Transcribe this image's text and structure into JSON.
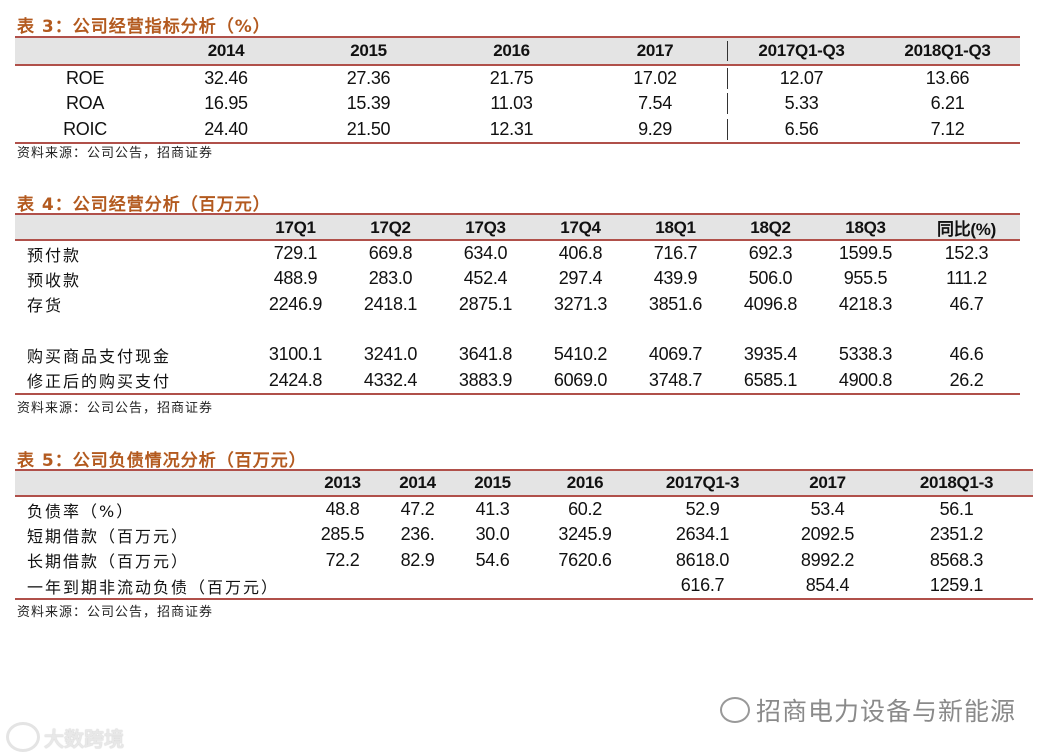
{
  "table3": {
    "title": "表 3：公司经营指标分析（%）",
    "headers": [
      "",
      "2014",
      "2015",
      "2016",
      "2017",
      "2017Q1-Q3",
      "2018Q1-Q3"
    ],
    "rows": [
      [
        "ROE",
        "32.46",
        "27.36",
        "21.75",
        "17.02",
        "12.07",
        "13.66"
      ],
      [
        "ROA",
        "16.95",
        "15.39",
        "11.03",
        "7.54",
        "5.33",
        "6.21"
      ],
      [
        "ROIC",
        "24.40",
        "21.50",
        "12.31",
        "9.29",
        "6.56",
        "7.12"
      ]
    ],
    "source": "资料来源：公司公告，招商证券"
  },
  "table4": {
    "title": "表 4：公司经营分析（百万元）",
    "headers": [
      "",
      "17Q1",
      "17Q2",
      "17Q3",
      "17Q4",
      "18Q1",
      "18Q2",
      "18Q3",
      "同比(%)"
    ],
    "rows": [
      [
        "预付款",
        "729.1",
        "669.8",
        "634.0",
        "406.8",
        "716.7",
        "692.3",
        "1599.5",
        "152.3"
      ],
      [
        "预收款",
        "488.9",
        "283.0",
        "452.4",
        "297.4",
        "439.9",
        "506.0",
        "955.5",
        "111.2"
      ],
      [
        "存货",
        "2246.9",
        "2418.1",
        "2875.1",
        "3271.3",
        "3851.6",
        "4096.8",
        "4218.3",
        "46.7"
      ],
      [
        "",
        "",
        "",
        "",
        "",
        "",
        "",
        "",
        ""
      ],
      [
        "购买商品支付现金",
        "3100.1",
        "3241.0",
        "3641.8",
        "5410.2",
        "4069.7",
        "3935.4",
        "5338.3",
        "46.6"
      ],
      [
        "修正后的购买支付",
        "2424.8",
        "4332.4",
        "3883.9",
        "6069.0",
        "3748.7",
        "6585.1",
        "4900.8",
        "26.2"
      ]
    ],
    "source": "资料来源：公司公告，招商证券"
  },
  "table5": {
    "title": "表 5：公司负债情况分析（百万元）",
    "headers": [
      "",
      "2013",
      "2014",
      "2015",
      "2016",
      "2017Q1-3",
      "2017",
      "2018Q1-3"
    ],
    "rows": [
      [
        "负债率（%）",
        "48.8",
        "47.2",
        "41.3",
        "60.2",
        "52.9",
        "53.4",
        "56.1"
      ],
      [
        "短期借款（百万元）",
        "285.5",
        "236.",
        "30.0",
        "3245.9",
        "2634.1",
        "2092.5",
        "2351.2"
      ],
      [
        "长期借款（百万元）",
        "72.2",
        "82.9",
        "54.6",
        "7620.6",
        "8618.0",
        "8992.2",
        "8568.3"
      ],
      [
        "一年到期非流动负债（百万元）",
        "",
        "",
        "",
        "",
        "616.7",
        "854.4",
        "1259.1"
      ]
    ],
    "source": "资料来源：公司公告，招商证券"
  },
  "watermark": {
    "text": "招商电力设备与新能源",
    "icon": "wechat-icon"
  },
  "logo": {
    "text": "大数跨境"
  }
}
